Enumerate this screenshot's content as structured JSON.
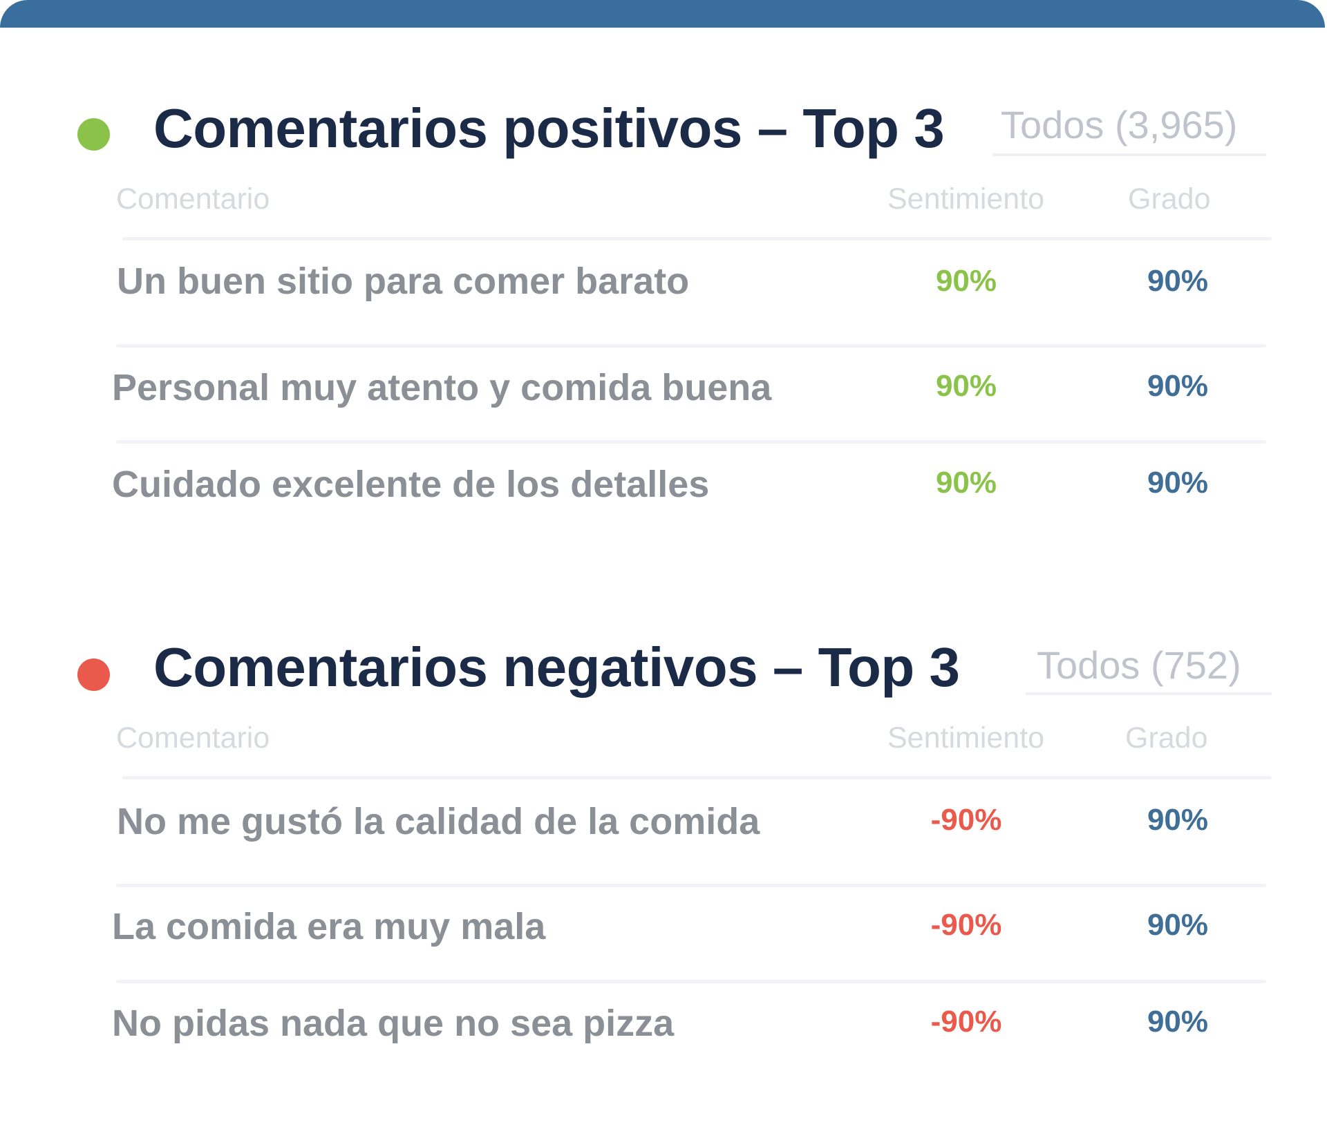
{
  "colors": {
    "top_bar": "#3a6e9c",
    "positive": "#8bc34a",
    "negative": "#e95a4c",
    "grade": "#3f6e97",
    "title": "#1b2a47",
    "comment_text": "#8b8f96",
    "column_header": "#d6d9de"
  },
  "positive": {
    "title": "Comentarios positivos – Top 3",
    "all_link": "Todos (3,965)",
    "columns": {
      "comment": "Comentario",
      "sentiment": "Sentimiento",
      "grade": "Grado"
    },
    "rows": [
      {
        "comment": "Un buen sitio para comer barato",
        "sentiment": "90%",
        "grade": "90%"
      },
      {
        "comment": "Personal muy atento y comida buena",
        "sentiment": "90%",
        "grade": "90%"
      },
      {
        "comment": "Cuidado excelente de los detalles",
        "sentiment": "90%",
        "grade": "90%"
      }
    ]
  },
  "negative": {
    "title": "Comentarios negativos – Top 3",
    "all_link": "Todos (752)",
    "columns": {
      "comment": "Comentario",
      "sentiment": "Sentimiento",
      "grade": "Grado"
    },
    "rows": [
      {
        "comment": "No me gustó la calidad de la comida",
        "sentiment": "-90%",
        "grade": "90%"
      },
      {
        "comment": "La comida era muy mala",
        "sentiment": "-90%",
        "grade": "90%"
      },
      {
        "comment": "No pidas nada que no sea pizza",
        "sentiment": "-90%",
        "grade": "90%"
      }
    ]
  }
}
